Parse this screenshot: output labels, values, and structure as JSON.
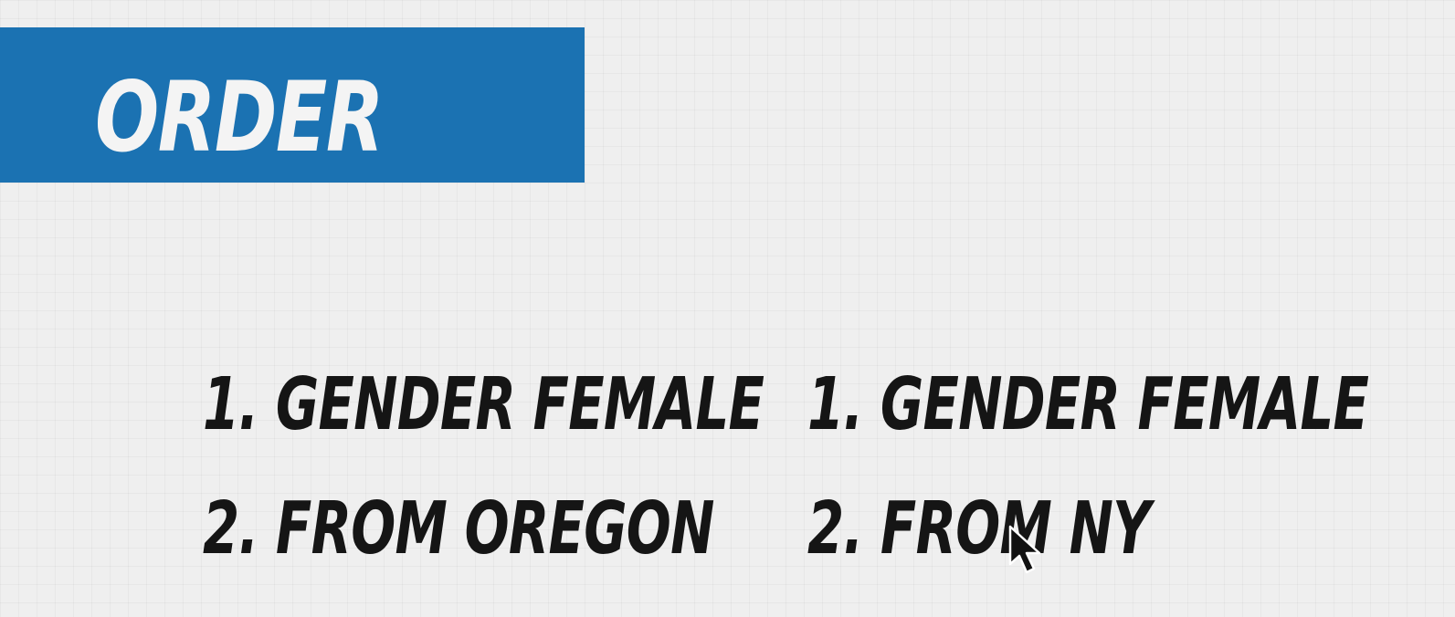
{
  "slide": {
    "title": "ORDER",
    "left_list": [
      "1. GENDER FEMALE",
      "2. FROM OREGON"
    ],
    "right_list": [
      "1. GENDER FEMALE",
      "2. FROM NY"
    ]
  },
  "colors": {
    "banner": "#1b72b2",
    "banner_text": "#f4f4f4",
    "body_text": "#151515",
    "background": "#efefef"
  },
  "icons": {
    "cursor": "mouse-pointer-icon"
  }
}
